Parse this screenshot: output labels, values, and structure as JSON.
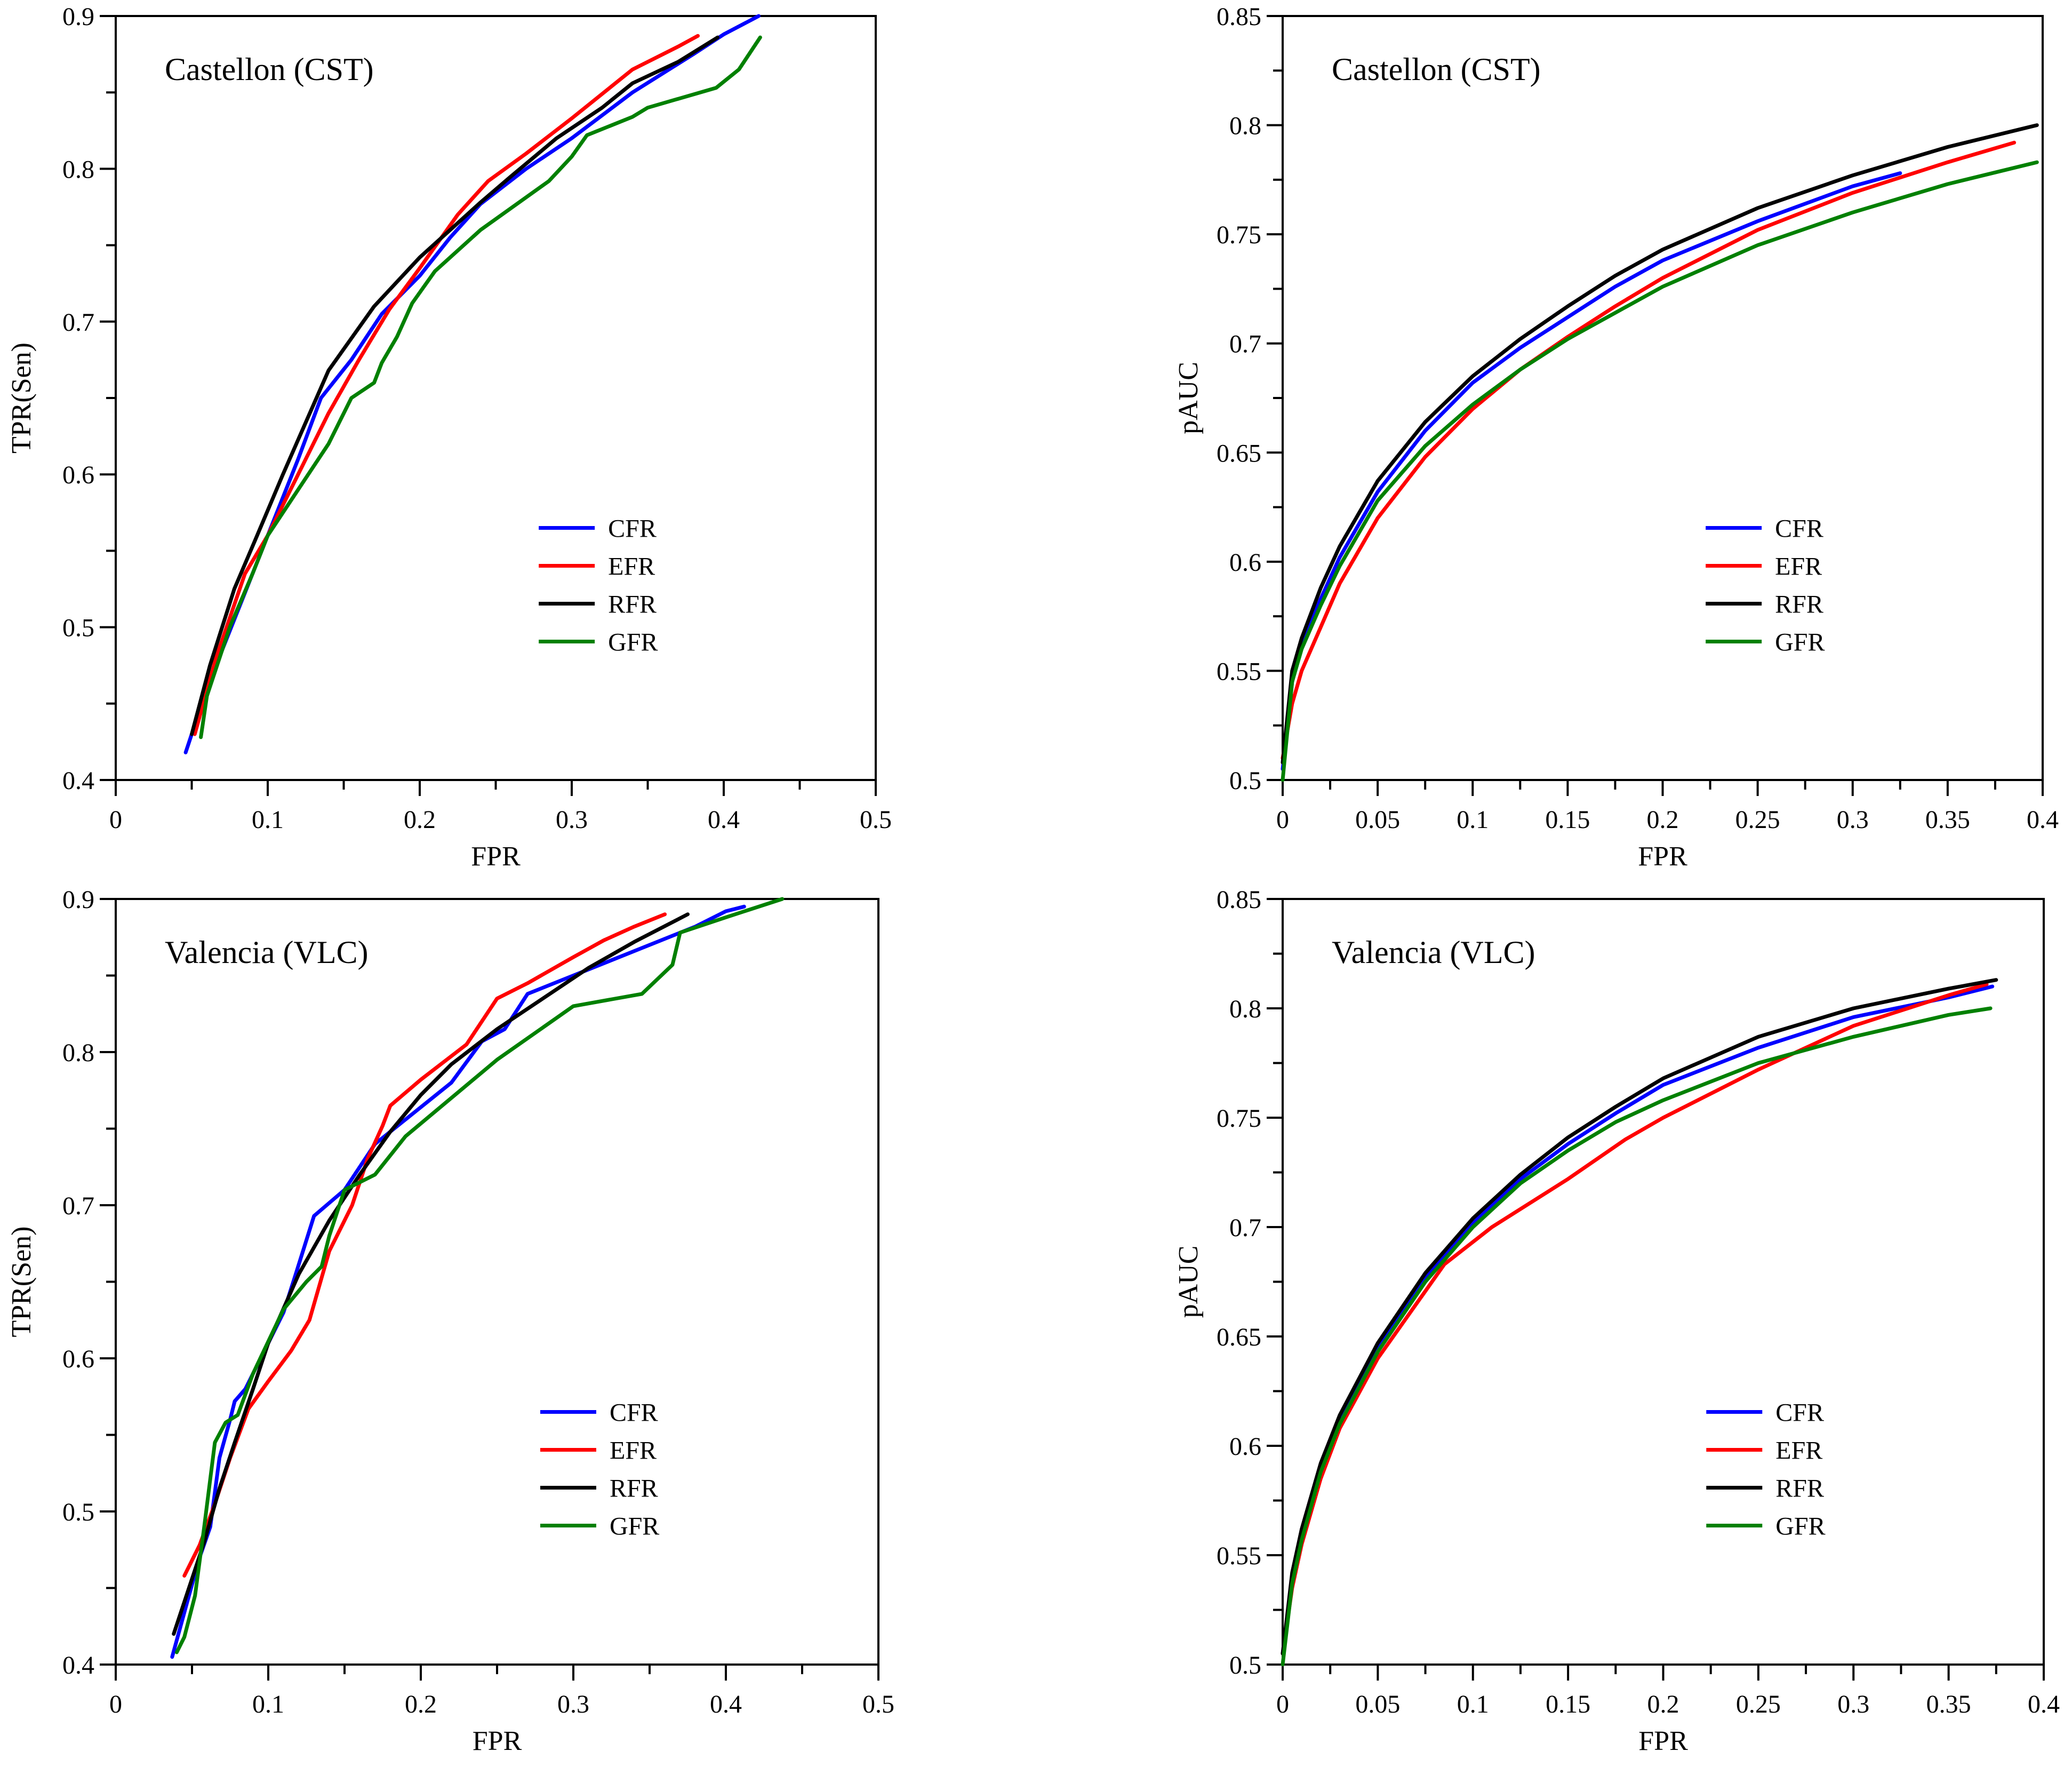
{
  "chart_data": [
    {
      "type": "line",
      "title": "Castellon (CST)",
      "xlabel": "FPR",
      "ylabel": "TPR(Sen)",
      "xlim": [
        0,
        0.5
      ],
      "ylim": [
        0.4,
        0.9
      ],
      "xticks": [
        0,
        0.1,
        0.2,
        0.3,
        0.4,
        0.5
      ],
      "xtick_labels": [
        "0",
        "0.1",
        "0.2",
        "0.3",
        "0.4",
        "0.5"
      ],
      "yticks": [
        0.4,
        0.5,
        0.6,
        0.7,
        0.8,
        0.9
      ],
      "ytick_labels": [
        "0.4",
        "0.5",
        "0.6",
        "0.7",
        "0.8",
        "0.9"
      ],
      "legend_position": "lower-right",
      "series": [
        {
          "name": "CFR",
          "color": "#0000ff",
          "x": [
            0.046,
            0.06,
            0.08,
            0.1,
            0.12,
            0.135,
            0.155,
            0.175,
            0.2,
            0.22,
            0.24,
            0.27,
            0.3,
            0.34,
            0.38,
            0.4,
            0.423
          ],
          "y": [
            0.418,
            0.46,
            0.51,
            0.56,
            0.61,
            0.65,
            0.675,
            0.705,
            0.73,
            0.755,
            0.777,
            0.8,
            0.82,
            0.85,
            0.875,
            0.888,
            0.9
          ]
        },
        {
          "name": "EFR",
          "color": "#ff0000",
          "x": [
            0.052,
            0.066,
            0.085,
            0.1,
            0.12,
            0.14,
            0.16,
            0.18,
            0.2,
            0.225,
            0.245,
            0.27,
            0.3,
            0.34,
            0.37,
            0.383
          ],
          "y": [
            0.43,
            0.48,
            0.535,
            0.56,
            0.6,
            0.64,
            0.675,
            0.708,
            0.735,
            0.77,
            0.792,
            0.81,
            0.833,
            0.865,
            0.88,
            0.887
          ]
        },
        {
          "name": "RFR",
          "color": "#000000",
          "x": [
            0.05,
            0.062,
            0.078,
            0.093,
            0.11,
            0.14,
            0.17,
            0.2,
            0.22,
            0.24,
            0.26,
            0.29,
            0.32,
            0.34,
            0.37,
            0.396
          ],
          "y": [
            0.43,
            0.475,
            0.525,
            0.56,
            0.6,
            0.668,
            0.71,
            0.742,
            0.76,
            0.778,
            0.795,
            0.82,
            0.84,
            0.856,
            0.87,
            0.886
          ]
        },
        {
          "name": "GFR",
          "color": "#008000",
          "x": [
            0.056,
            0.06,
            0.075,
            0.09,
            0.1,
            0.12,
            0.14,
            0.155,
            0.17,
            0.175,
            0.185,
            0.195,
            0.21,
            0.24,
            0.285,
            0.3,
            0.31,
            0.34,
            0.35,
            0.395,
            0.41,
            0.424
          ],
          "y": [
            0.428,
            0.455,
            0.5,
            0.535,
            0.56,
            0.59,
            0.62,
            0.65,
            0.66,
            0.673,
            0.69,
            0.712,
            0.733,
            0.76,
            0.792,
            0.808,
            0.822,
            0.834,
            0.84,
            0.853,
            0.865,
            0.886
          ]
        }
      ]
    },
    {
      "type": "line",
      "title": "Castellon (CST)",
      "xlabel": "FPR",
      "ylabel": "pAUC",
      "xlim": [
        0,
        0.4
      ],
      "ylim": [
        0.5,
        0.85
      ],
      "xticks": [
        0,
        0.05,
        0.1,
        0.15,
        0.2,
        0.25,
        0.3,
        0.35,
        0.4
      ],
      "xtick_labels": [
        "0",
        "0.05",
        "0.1",
        "0.15",
        "0.2",
        "0.25",
        "0.3",
        "0.35",
        "0.4"
      ],
      "yticks": [
        0.5,
        0.55,
        0.6,
        0.65,
        0.7,
        0.75,
        0.8,
        0.85
      ],
      "ytick_labels": [
        "0.5",
        "0.55",
        "0.6",
        "0.65",
        "0.7",
        "0.75",
        "0.8",
        "0.85"
      ],
      "legend_position": "lower-right",
      "series": [
        {
          "name": "CFR",
          "color": "#0000ff",
          "x": [
            0,
            0.005,
            0.01,
            0.02,
            0.03,
            0.05,
            0.075,
            0.1,
            0.125,
            0.15,
            0.175,
            0.2,
            0.25,
            0.3,
            0.325
          ],
          "y": [
            0.505,
            0.545,
            0.562,
            0.583,
            0.602,
            0.632,
            0.66,
            0.682,
            0.698,
            0.712,
            0.726,
            0.738,
            0.756,
            0.772,
            0.778
          ]
        },
        {
          "name": "EFR",
          "color": "#ff0000",
          "x": [
            0,
            0.005,
            0.01,
            0.02,
            0.03,
            0.05,
            0.075,
            0.1,
            0.125,
            0.15,
            0.175,
            0.2,
            0.25,
            0.3,
            0.35,
            0.385
          ],
          "y": [
            0.51,
            0.535,
            0.55,
            0.57,
            0.59,
            0.62,
            0.648,
            0.67,
            0.688,
            0.703,
            0.717,
            0.73,
            0.752,
            0.769,
            0.783,
            0.792
          ]
        },
        {
          "name": "RFR",
          "color": "#000000",
          "x": [
            0,
            0.005,
            0.01,
            0.02,
            0.03,
            0.05,
            0.075,
            0.1,
            0.125,
            0.15,
            0.175,
            0.2,
            0.25,
            0.3,
            0.35,
            0.397
          ],
          "y": [
            0.508,
            0.55,
            0.565,
            0.588,
            0.607,
            0.637,
            0.664,
            0.685,
            0.702,
            0.717,
            0.731,
            0.743,
            0.762,
            0.777,
            0.79,
            0.8
          ]
        },
        {
          "name": "GFR",
          "color": "#008000",
          "x": [
            0,
            0.005,
            0.01,
            0.02,
            0.03,
            0.05,
            0.075,
            0.1,
            0.125,
            0.15,
            0.175,
            0.2,
            0.25,
            0.3,
            0.35,
            0.397
          ],
          "y": [
            0.5,
            0.545,
            0.56,
            0.58,
            0.598,
            0.628,
            0.653,
            0.672,
            0.688,
            0.702,
            0.714,
            0.726,
            0.745,
            0.76,
            0.773,
            0.783
          ]
        }
      ]
    },
    {
      "type": "line",
      "title": "Valencia (VLC)",
      "xlabel": "FPR",
      "ylabel": "TPR(Sen)",
      "xlim": [
        0,
        0.5
      ],
      "ylim": [
        0.4,
        0.9
      ],
      "xticks": [
        0,
        0.1,
        0.2,
        0.3,
        0.4,
        0.5
      ],
      "xtick_labels": [
        "0",
        "0.1",
        "0.2",
        "0.3",
        "0.4",
        "0.5"
      ],
      "yticks": [
        0.4,
        0.5,
        0.6,
        0.7,
        0.8,
        0.9
      ],
      "ytick_labels": [
        "0.4",
        "0.5",
        "0.6",
        "0.7",
        "0.8",
        "0.9"
      ],
      "legend_position": "lower-right",
      "series": [
        {
          "name": "CFR",
          "color": "#0000ff",
          "x": [
            0.037,
            0.048,
            0.055,
            0.062,
            0.068,
            0.075,
            0.078,
            0.085,
            0.095,
            0.11,
            0.118,
            0.13,
            0.15,
            0.17,
            0.195,
            0.22,
            0.24,
            0.255,
            0.27,
            0.3,
            0.35,
            0.38,
            0.4,
            0.412
          ],
          "y": [
            0.405,
            0.445,
            0.47,
            0.49,
            0.535,
            0.56,
            0.572,
            0.58,
            0.6,
            0.63,
            0.655,
            0.693,
            0.71,
            0.74,
            0.76,
            0.78,
            0.807,
            0.815,
            0.838,
            0.85,
            0.87,
            0.882,
            0.892,
            0.895
          ]
        },
        {
          "name": "EFR",
          "color": "#ff0000",
          "x": [
            0.045,
            0.055,
            0.065,
            0.075,
            0.087,
            0.1,
            0.115,
            0.127,
            0.14,
            0.155,
            0.165,
            0.175,
            0.18,
            0.2,
            0.23,
            0.25,
            0.27,
            0.3,
            0.32,
            0.34,
            0.36
          ],
          "y": [
            0.458,
            0.478,
            0.505,
            0.535,
            0.567,
            0.585,
            0.605,
            0.625,
            0.67,
            0.7,
            0.73,
            0.752,
            0.765,
            0.782,
            0.805,
            0.835,
            0.845,
            0.862,
            0.873,
            0.882,
            0.89
          ]
        },
        {
          "name": "RFR",
          "color": "#000000",
          "x": [
            0.038,
            0.048,
            0.058,
            0.068,
            0.078,
            0.09,
            0.1,
            0.12,
            0.14,
            0.16,
            0.18,
            0.2,
            0.22,
            0.25,
            0.28,
            0.31,
            0.34,
            0.375
          ],
          "y": [
            0.42,
            0.45,
            0.48,
            0.515,
            0.545,
            0.58,
            0.61,
            0.655,
            0.69,
            0.72,
            0.748,
            0.772,
            0.792,
            0.815,
            0.835,
            0.855,
            0.872,
            0.89
          ]
        },
        {
          "name": "GFR",
          "color": "#008000",
          "x": [
            0.04,
            0.045,
            0.052,
            0.058,
            0.065,
            0.072,
            0.08,
            0.09,
            0.11,
            0.125,
            0.135,
            0.14,
            0.15,
            0.16,
            0.17,
            0.19,
            0.22,
            0.25,
            0.3,
            0.345,
            0.365,
            0.37,
            0.4,
            0.437
          ],
          "y": [
            0.408,
            0.418,
            0.445,
            0.49,
            0.545,
            0.558,
            0.563,
            0.59,
            0.632,
            0.65,
            0.66,
            0.68,
            0.71,
            0.715,
            0.72,
            0.745,
            0.77,
            0.795,
            0.83,
            0.838,
            0.857,
            0.878,
            0.888,
            0.9
          ]
        }
      ]
    },
    {
      "type": "line",
      "title": "Valencia (VLC)",
      "xlabel": "FPR",
      "ylabel": "pAUC",
      "xlim": [
        0,
        0.4
      ],
      "ylim": [
        0.5,
        0.85
      ],
      "xticks": [
        0,
        0.05,
        0.1,
        0.15,
        0.2,
        0.25,
        0.3,
        0.35,
        0.4
      ],
      "xtick_labels": [
        "0",
        "0.05",
        "0.1",
        "0.15",
        "0.2",
        "0.25",
        "0.3",
        "0.35",
        "0.4"
      ],
      "yticks": [
        0.5,
        0.55,
        0.6,
        0.65,
        0.7,
        0.75,
        0.8,
        0.85
      ],
      "ytick_labels": [
        "0.5",
        "0.55",
        "0.6",
        "0.65",
        "0.7",
        "0.75",
        "0.8",
        "0.85"
      ],
      "legend_position": "lower-right",
      "series": [
        {
          "name": "CFR",
          "color": "#0000ff",
          "x": [
            0,
            0.005,
            0.01,
            0.02,
            0.03,
            0.05,
            0.075,
            0.1,
            0.125,
            0.15,
            0.175,
            0.2,
            0.25,
            0.3,
            0.35,
            0.373
          ],
          "y": [
            0.505,
            0.54,
            0.56,
            0.59,
            0.612,
            0.645,
            0.677,
            0.702,
            0.722,
            0.738,
            0.752,
            0.765,
            0.782,
            0.796,
            0.805,
            0.81
          ]
        },
        {
          "name": "EFR",
          "color": "#ff0000",
          "x": [
            0,
            0.005,
            0.01,
            0.02,
            0.03,
            0.05,
            0.085,
            0.11,
            0.15,
            0.18,
            0.2,
            0.25,
            0.3,
            0.35,
            0.37
          ],
          "y": [
            0.505,
            0.535,
            0.555,
            0.585,
            0.608,
            0.64,
            0.683,
            0.7,
            0.722,
            0.74,
            0.75,
            0.772,
            0.792,
            0.806,
            0.811
          ]
        },
        {
          "name": "RFR",
          "color": "#000000",
          "x": [
            0,
            0.005,
            0.01,
            0.02,
            0.03,
            0.05,
            0.075,
            0.1,
            0.125,
            0.15,
            0.175,
            0.2,
            0.25,
            0.3,
            0.35,
            0.375
          ],
          "y": [
            0.505,
            0.542,
            0.562,
            0.592,
            0.614,
            0.647,
            0.679,
            0.704,
            0.724,
            0.741,
            0.755,
            0.768,
            0.787,
            0.8,
            0.809,
            0.813
          ]
        },
        {
          "name": "GFR",
          "color": "#008000",
          "x": [
            0,
            0.005,
            0.01,
            0.02,
            0.03,
            0.05,
            0.075,
            0.1,
            0.125,
            0.15,
            0.175,
            0.2,
            0.25,
            0.3,
            0.35,
            0.372
          ],
          "y": [
            0.5,
            0.537,
            0.557,
            0.588,
            0.61,
            0.643,
            0.675,
            0.7,
            0.72,
            0.735,
            0.748,
            0.758,
            0.775,
            0.787,
            0.797,
            0.8
          ]
        }
      ]
    }
  ]
}
